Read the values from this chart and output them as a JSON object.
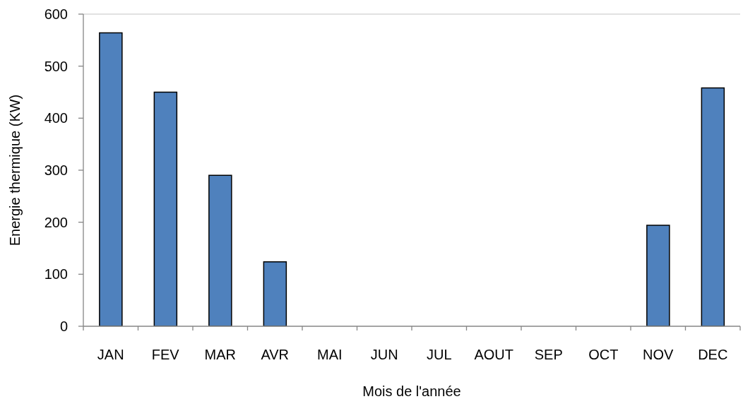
{
  "chart_data": {
    "type": "bar",
    "xlabel": "Mois de l'année",
    "ylabel": "Energie thermique (KW)",
    "categories": [
      "JAN",
      "FEV",
      "MAR",
      "AVR",
      "MAI",
      "JUN",
      "JUL",
      "AOUT",
      "SEP",
      "OCT",
      "NOV",
      "DEC"
    ],
    "values": [
      564,
      450,
      290,
      124,
      0,
      0,
      0,
      0,
      0,
      0,
      194,
      458
    ],
    "color": "#4f81bd",
    "ylim": [
      0,
      600
    ],
    "yticks": [
      0,
      100,
      200,
      300,
      400,
      500,
      600
    ]
  }
}
